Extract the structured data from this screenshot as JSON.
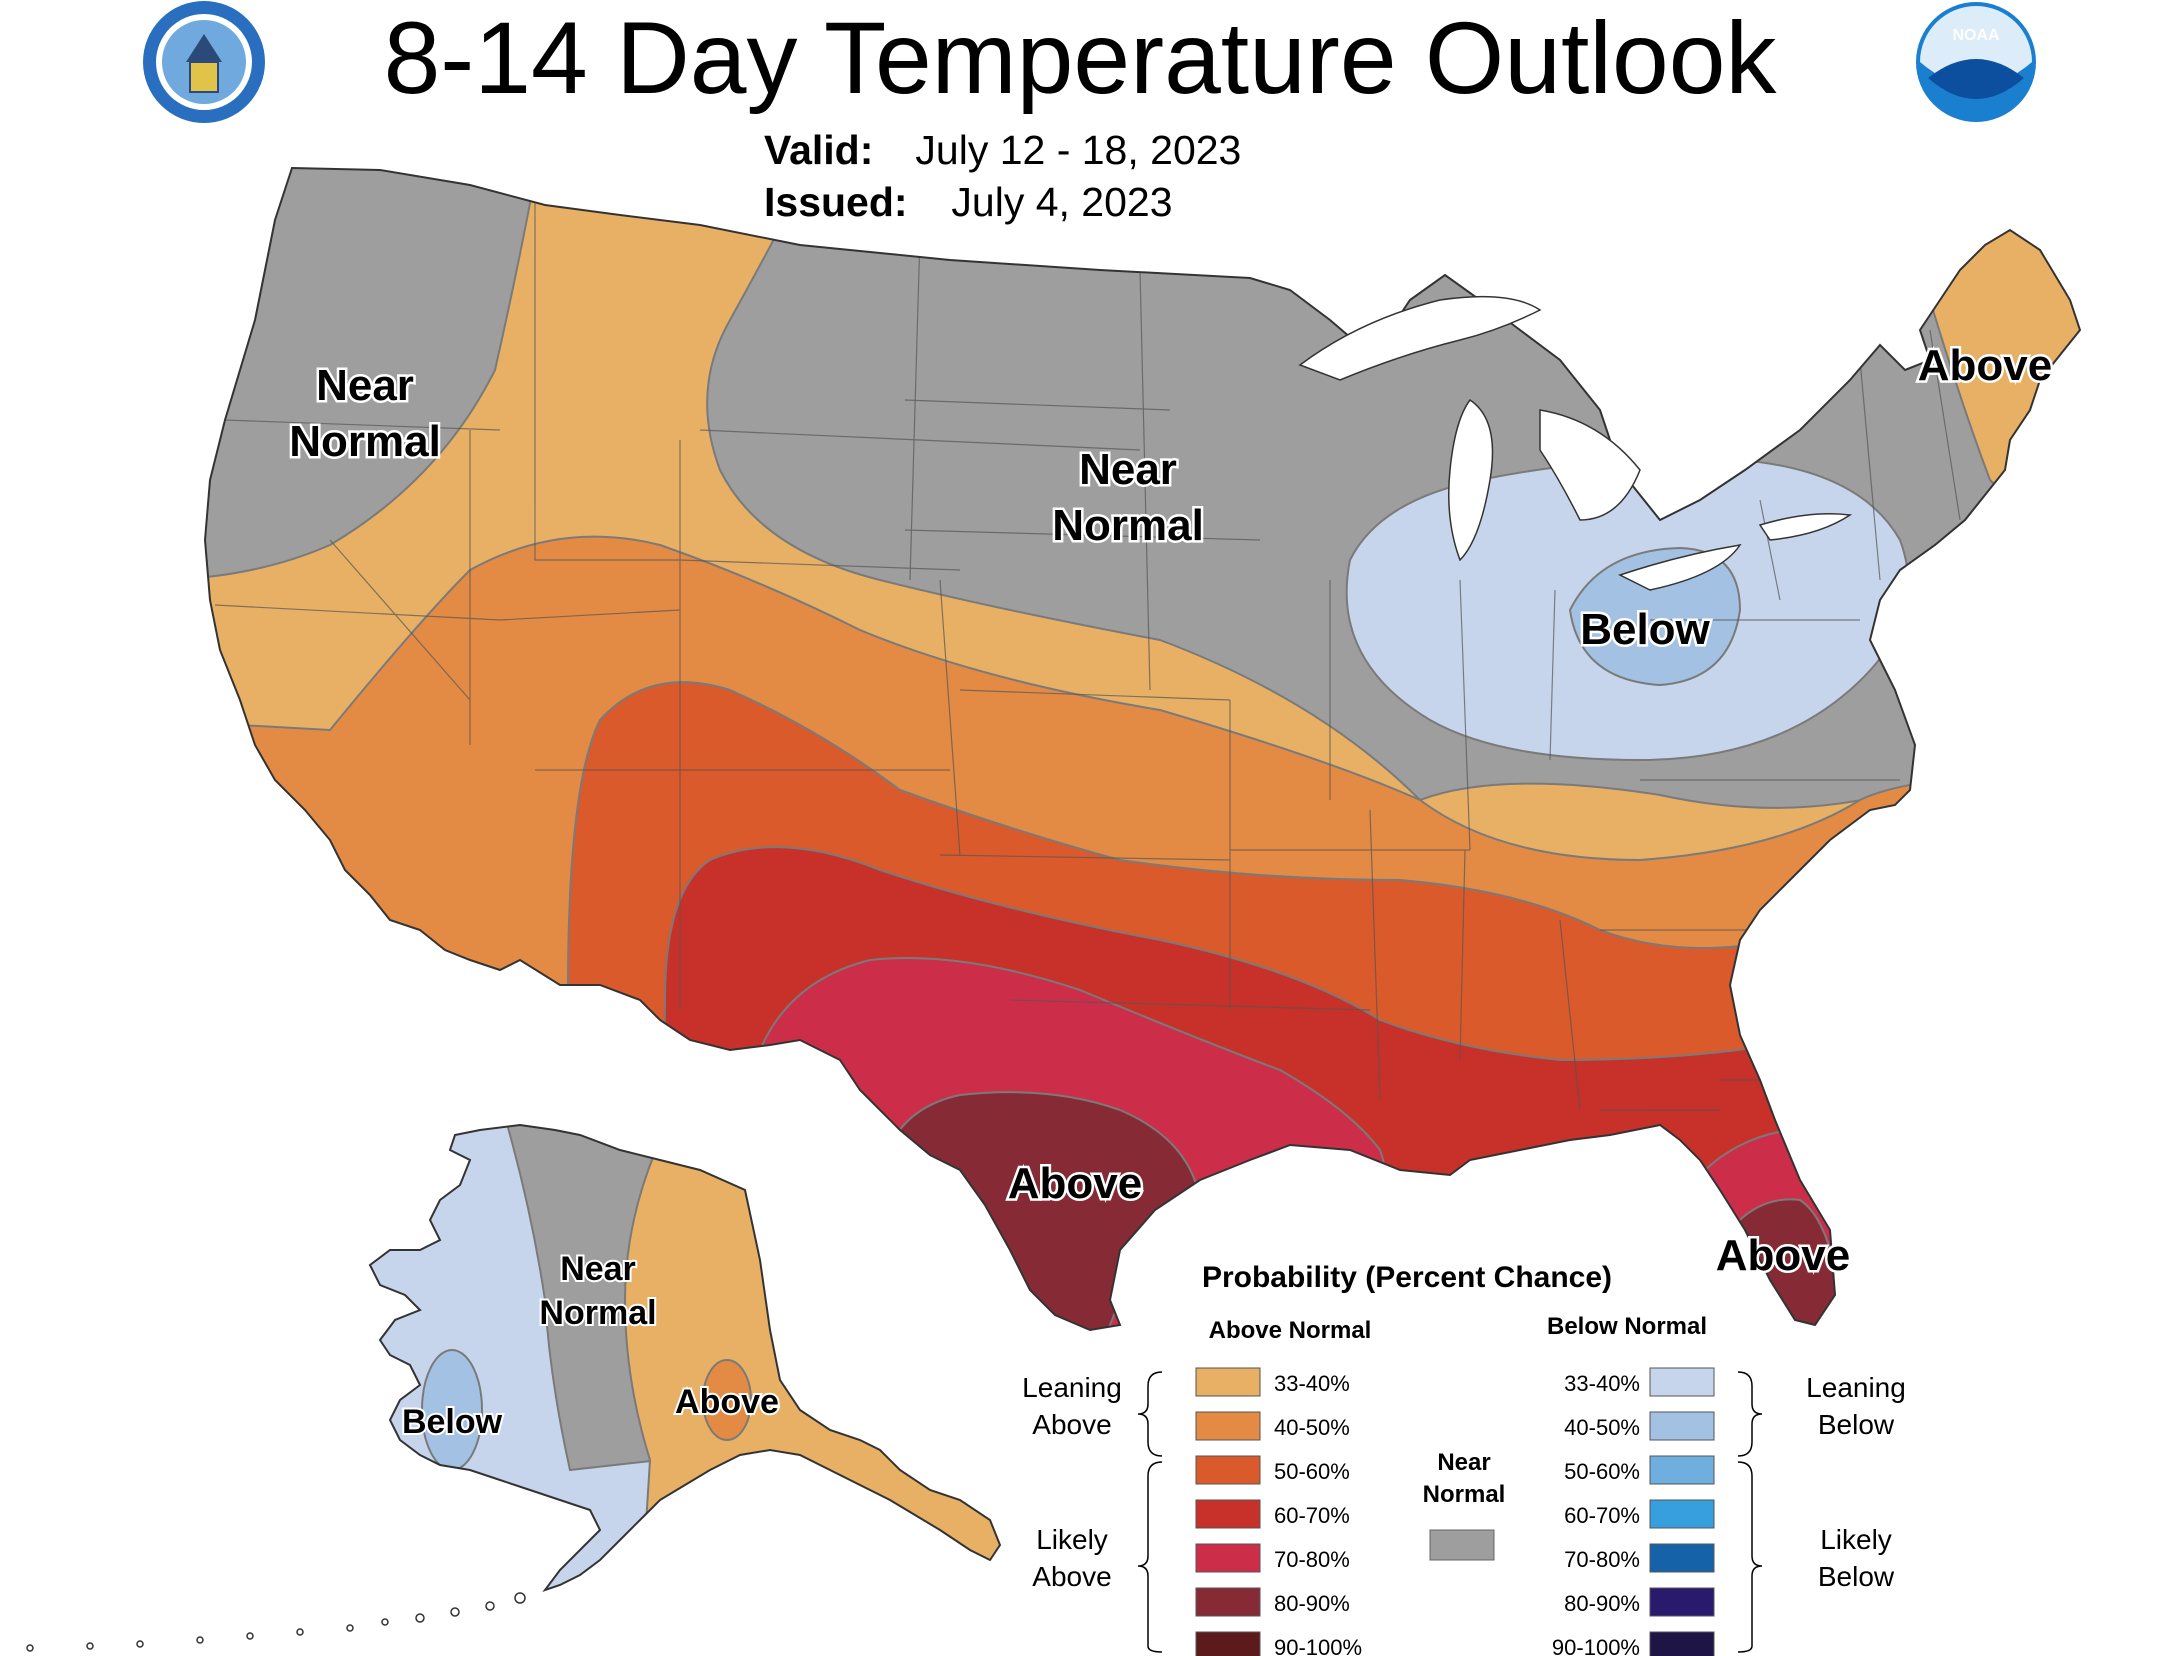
{
  "header": {
    "title": "8-14 Day Temperature Outlook",
    "valid_label": "Valid:",
    "valid_value": "July 12 - 18, 2023",
    "issued_label": "Issued:",
    "issued_value": "July 4, 2023",
    "left_logo": "doc-seal-icon",
    "right_logo": "noaa-logo-icon",
    "noaa_text": "NOAA"
  },
  "map_labels": {
    "nw_near_normal_1": "Near",
    "nw_near_normal_2": "Normal",
    "central_near_normal_1": "Near",
    "central_near_normal_2": "Normal",
    "ne_above": "Above",
    "great_lakes_below": "Below",
    "texas_above": "Above",
    "florida_above": "Above",
    "ak_near_normal_1": "Near",
    "ak_near_normal_2": "Normal",
    "ak_below": "Below",
    "ak_above": "Above"
  },
  "legend": {
    "title": "Probability (Percent Chance)",
    "above_header": "Above Normal",
    "below_header": "Below Normal",
    "near_normal_1": "Near",
    "near_normal_2": "Normal",
    "leaning_above_1": "Leaning",
    "leaning_above_2": "Above",
    "likely_above_1": "Likely",
    "likely_above_2": "Above",
    "leaning_below_1": "Leaning",
    "leaning_below_2": "Below",
    "likely_below_1": "Likely",
    "likely_below_2": "Below",
    "above_items": [
      {
        "label": "33-40%",
        "color": "#E8B065"
      },
      {
        "label": "40-50%",
        "color": "#E38B45"
      },
      {
        "label": "50-60%",
        "color": "#DB5A2B"
      },
      {
        "label": "60-70%",
        "color": "#C8302A"
      },
      {
        "label": "70-80%",
        "color": "#CC2E4A"
      },
      {
        "label": "80-90%",
        "color": "#862B35"
      },
      {
        "label": "90-100%",
        "color": "#5C1A1C"
      }
    ],
    "below_items": [
      {
        "label": "33-40%",
        "color": "#C7D5EC"
      },
      {
        "label": "40-50%",
        "color": "#A3C1E3"
      },
      {
        "label": "50-60%",
        "color": "#6FAFE0"
      },
      {
        "label": "60-70%",
        "color": "#379FDD"
      },
      {
        "label": "70-80%",
        "color": "#1662A8"
      },
      {
        "label": "80-90%",
        "color": "#2A1A6E"
      },
      {
        "label": "90-100%",
        "color": "#1E1445"
      }
    ],
    "near_normal_color": "#9E9E9E"
  },
  "colors": {
    "near_normal": "#9E9E9E",
    "above_33_40": "#E8B065",
    "above_40_50": "#E38B45",
    "above_50_60": "#DB5A2B",
    "above_60_70": "#C8302A",
    "above_70_80": "#CC2E4A",
    "above_80_90": "#862B35",
    "below_33_40": "#C7D5EC",
    "below_40_50": "#A3C1E3"
  }
}
